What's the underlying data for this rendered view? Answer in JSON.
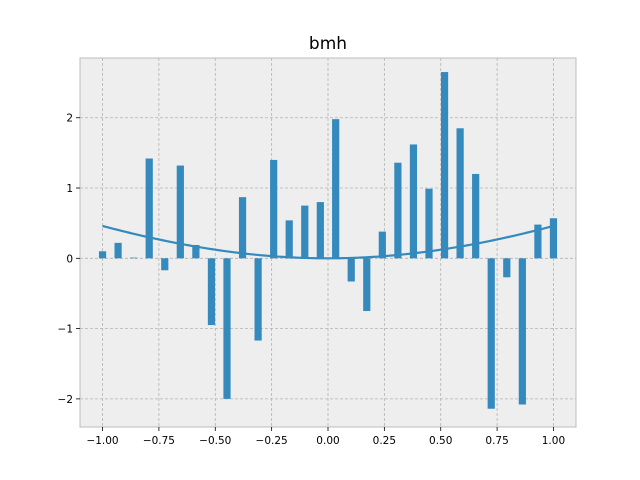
{
  "chart_data": {
    "type": "bar",
    "title": "bmh",
    "xlabel": "",
    "ylabel": "",
    "xlim": [
      -1.1,
      1.1
    ],
    "ylim": [
      -2.4,
      2.85
    ],
    "grid": true,
    "xticks": [
      -1.0,
      -0.75,
      -0.5,
      -0.25,
      0.0,
      0.25,
      0.5,
      0.75,
      1.0
    ],
    "xtick_labels": [
      "−1.00",
      "−0.75",
      "−0.50",
      "−0.25",
      "0.00",
      "0.25",
      "0.50",
      "0.75",
      "1.00"
    ],
    "yticks": [
      -2,
      -1,
      0,
      1,
      2
    ],
    "ytick_labels": [
      "−2",
      "−1",
      "0",
      "1",
      "2"
    ],
    "bar_color": "#348abd",
    "line_color": "#348abd",
    "background_color": "#eeeeee",
    "bars": {
      "x": [
        -1.0,
        -0.931,
        -0.862,
        -0.793,
        -0.724,
        -0.655,
        -0.586,
        -0.517,
        -0.448,
        -0.379,
        -0.31,
        -0.241,
        -0.172,
        -0.103,
        -0.034,
        0.034,
        0.103,
        0.172,
        0.241,
        0.31,
        0.379,
        0.448,
        0.517,
        0.586,
        0.655,
        0.724,
        0.793,
        0.862,
        0.931,
        1.0
      ],
      "values": [
        0.1,
        0.22,
        0.01,
        1.42,
        -0.17,
        1.32,
        0.19,
        -0.95,
        -2.0,
        0.87,
        -1.17,
        1.4,
        0.54,
        0.75,
        0.8,
        1.98,
        -0.33,
        -0.75,
        0.38,
        1.36,
        1.62,
        0.99,
        2.65,
        1.85,
        1.2,
        -2.14,
        -0.27,
        -2.08,
        0.48,
        0.57
      ]
    },
    "line": {
      "name": "curve",
      "function": "1 - cos(x)",
      "x_range": [
        -1.0,
        1.0
      ]
    }
  }
}
